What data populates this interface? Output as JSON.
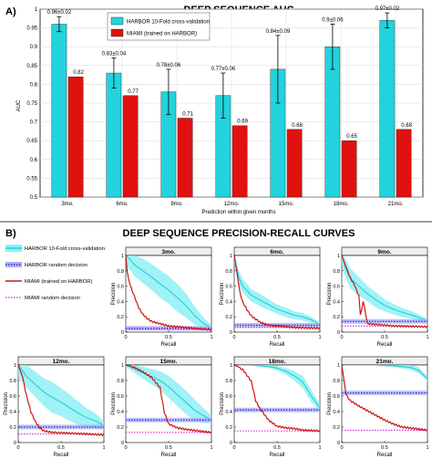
{
  "panel_a_letter": "A)",
  "panel_b_letter": "B)",
  "chart_data": [
    {
      "type": "bar",
      "title": "DEEP SEQUENCE AUC",
      "xlabel": "Prediction within given months",
      "ylabel": "AUC",
      "ylim": [
        0.5,
        1.0
      ],
      "yticks": [
        "0.5",
        "0.55",
        "0.6",
        "0.65",
        "0.7",
        "0.75",
        "0.8",
        "0.85",
        "0.9",
        "0.95",
        "1"
      ],
      "grid": true,
      "legend_position": "top-left",
      "categories": [
        "3mo.",
        "6mo.",
        "9mo.",
        "12mo.",
        "15mo.",
        "18mo.",
        "21mo."
      ],
      "series": [
        {
          "name": "HARBOR 10-Fold cross-validation",
          "color": "#22d3dd",
          "values": [
            0.96,
            0.83,
            0.78,
            0.77,
            0.84,
            0.9,
            0.97
          ],
          "errors": [
            0.02,
            0.04,
            0.06,
            0.06,
            0.09,
            0.06,
            0.02
          ],
          "labels": [
            "0.96±0.02",
            "0.83±0.04",
            "0.78±0.06",
            "0.77±0.06",
            "0.84±0.09",
            "0.9±0.06",
            "0.97±0.02"
          ]
        },
        {
          "name": "MIAMI (trained on HARBOR)",
          "color": "#e0120f",
          "values": [
            0.82,
            0.77,
            0.71,
            0.69,
            0.68,
            0.65,
            0.68
          ],
          "labels": [
            "0.82",
            "0.77",
            "0.71",
            "0.69",
            "0.68",
            "0.65",
            "0.68"
          ]
        }
      ]
    },
    {
      "type": "line",
      "title": "DEEP SEQUENCE PRECISION-RECALL CURVES",
      "xlabel": "Recall",
      "ylabel": "Precision",
      "xlim": [
        0,
        1
      ],
      "ylim": [
        0,
        1
      ],
      "xticks": [
        "0",
        "0.5",
        "1"
      ],
      "yticks": [
        "0",
        "0.2",
        "0.4",
        "0.6",
        "0.8",
        "1"
      ],
      "legend": [
        {
          "name": "HARBOR 10-Fold cross-validation",
          "color": "#22d3dd",
          "style": "band"
        },
        {
          "name": "HARBOR random decision",
          "color": "#2d2ce0",
          "style": "dotted-band"
        },
        {
          "name": "MIAMI (trained on HARBOR)",
          "color": "#cc1414",
          "style": "line"
        },
        {
          "name": "MIAMI random decision",
          "color": "#d41fd4",
          "style": "dotted"
        }
      ],
      "panels": [
        {
          "title": "3mo.",
          "harbor_random": 0.05,
          "miami_random": 0.04,
          "harbor_mean": [
            [
              0,
              1.0
            ],
            [
              0.05,
              0.95
            ],
            [
              0.1,
              0.88
            ],
            [
              0.2,
              0.8
            ],
            [
              0.3,
              0.72
            ],
            [
              0.4,
              0.63
            ],
            [
              0.5,
              0.55
            ],
            [
              0.6,
              0.45
            ],
            [
              0.7,
              0.35
            ],
            [
              0.8,
              0.22
            ],
            [
              0.9,
              0.12
            ],
            [
              1.0,
              0.06
            ]
          ],
          "harbor_band": [
            0.12,
            0.14,
            0.15,
            0.16,
            0.17,
            0.18,
            0.18,
            0.18,
            0.16,
            0.12,
            0.08,
            0.03
          ],
          "miami": [
            [
              0,
              1.0
            ],
            [
              0.02,
              0.75
            ],
            [
              0.05,
              0.62
            ],
            [
              0.1,
              0.48
            ],
            [
              0.15,
              0.33
            ],
            [
              0.2,
              0.24
            ],
            [
              0.25,
              0.19
            ],
            [
              0.3,
              0.15
            ],
            [
              0.4,
              0.12
            ],
            [
              0.5,
              0.09
            ],
            [
              0.7,
              0.07
            ],
            [
              0.9,
              0.05
            ],
            [
              1.0,
              0.04
            ]
          ]
        },
        {
          "title": "6mo.",
          "harbor_random": 0.09,
          "miami_random": 0.06,
          "harbor_mean": [
            [
              0,
              1.0
            ],
            [
              0.05,
              0.72
            ],
            [
              0.1,
              0.6
            ],
            [
              0.2,
              0.48
            ],
            [
              0.3,
              0.42
            ],
            [
              0.4,
              0.36
            ],
            [
              0.5,
              0.3
            ],
            [
              0.6,
              0.26
            ],
            [
              0.7,
              0.22
            ],
            [
              0.8,
              0.2
            ],
            [
              0.9,
              0.16
            ],
            [
              1.0,
              0.1
            ]
          ],
          "harbor_band": [
            0.1,
            0.1,
            0.09,
            0.08,
            0.08,
            0.07,
            0.06,
            0.06,
            0.05,
            0.05,
            0.04,
            0.02
          ],
          "miami": [
            [
              0,
              1.0
            ],
            [
              0.03,
              0.8
            ],
            [
              0.06,
              0.55
            ],
            [
              0.1,
              0.4
            ],
            [
              0.15,
              0.3
            ],
            [
              0.2,
              0.22
            ],
            [
              0.3,
              0.14
            ],
            [
              0.4,
              0.1
            ],
            [
              0.5,
              0.09
            ],
            [
              0.7,
              0.07
            ],
            [
              1.0,
              0.06
            ]
          ]
        },
        {
          "title": "9mo.",
          "harbor_random": 0.14,
          "miami_random": 0.08,
          "harbor_mean": [
            [
              0,
              1.0
            ],
            [
              0.05,
              0.82
            ],
            [
              0.1,
              0.7
            ],
            [
              0.2,
              0.6
            ],
            [
              0.3,
              0.5
            ],
            [
              0.4,
              0.42
            ],
            [
              0.5,
              0.35
            ],
            [
              0.6,
              0.3
            ],
            [
              0.7,
              0.26
            ],
            [
              0.8,
              0.23
            ],
            [
              0.9,
              0.19
            ],
            [
              1.0,
              0.15
            ]
          ],
          "harbor_band": [
            0.12,
            0.13,
            0.13,
            0.12,
            0.1,
            0.1,
            0.08,
            0.07,
            0.06,
            0.05,
            0.04,
            0.02
          ],
          "miami": [
            [
              0,
              1.0
            ],
            [
              0.05,
              0.85
            ],
            [
              0.1,
              0.72
            ],
            [
              0.15,
              0.62
            ],
            [
              0.2,
              0.48
            ],
            [
              0.22,
              0.2
            ],
            [
              0.25,
              0.42
            ],
            [
              0.3,
              0.12
            ],
            [
              0.4,
              0.11
            ],
            [
              0.6,
              0.09
            ],
            [
              1.0,
              0.08
            ]
          ]
        },
        {
          "title": "12mo.",
          "harbor_random": 0.2,
          "miami_random": 0.11,
          "harbor_mean": [
            [
              0,
              1.0
            ],
            [
              0.1,
              0.85
            ],
            [
              0.2,
              0.75
            ],
            [
              0.3,
              0.65
            ],
            [
              0.4,
              0.58
            ],
            [
              0.5,
              0.52
            ],
            [
              0.6,
              0.45
            ],
            [
              0.7,
              0.38
            ],
            [
              0.8,
              0.32
            ],
            [
              0.9,
              0.28
            ],
            [
              1.0,
              0.22
            ]
          ],
          "harbor_band": [
            0.15,
            0.15,
            0.16,
            0.18,
            0.2,
            0.18,
            0.17,
            0.15,
            0.12,
            0.1,
            0.05
          ],
          "miami": [
            [
              0,
              1.0
            ],
            [
              0.05,
              0.85
            ],
            [
              0.1,
              0.6
            ],
            [
              0.15,
              0.4
            ],
            [
              0.2,
              0.28
            ],
            [
              0.25,
              0.2
            ],
            [
              0.3,
              0.16
            ],
            [
              0.4,
              0.14
            ],
            [
              0.6,
              0.13
            ],
            [
              0.8,
              0.12
            ],
            [
              1.0,
              0.11
            ]
          ]
        },
        {
          "title": "15mo.",
          "harbor_random": 0.29,
          "miami_random": 0.13,
          "harbor_mean": [
            [
              0,
              1.0
            ],
            [
              0.1,
              0.95
            ],
            [
              0.2,
              0.9
            ],
            [
              0.3,
              0.85
            ],
            [
              0.4,
              0.8
            ],
            [
              0.5,
              0.72
            ],
            [
              0.6,
              0.62
            ],
            [
              0.7,
              0.52
            ],
            [
              0.8,
              0.42
            ],
            [
              0.9,
              0.35
            ],
            [
              1.0,
              0.3
            ]
          ],
          "harbor_band": [
            0.02,
            0.05,
            0.08,
            0.1,
            0.12,
            0.14,
            0.15,
            0.15,
            0.14,
            0.1,
            0.05
          ],
          "miami": [
            [
              0,
              1.0
            ],
            [
              0.1,
              0.98
            ],
            [
              0.2,
              0.92
            ],
            [
              0.3,
              0.85
            ],
            [
              0.4,
              0.72
            ],
            [
              0.45,
              0.4
            ],
            [
              0.5,
              0.25
            ],
            [
              0.6,
              0.2
            ],
            [
              0.7,
              0.18
            ],
            [
              0.85,
              0.16
            ],
            [
              1.0,
              0.14
            ]
          ]
        },
        {
          "title": "18mo.",
          "harbor_random": 0.42,
          "miami_random": 0.15,
          "harbor_mean": [
            [
              0,
              1.0
            ],
            [
              0.2,
              1.0
            ],
            [
              0.4,
              0.98
            ],
            [
              0.5,
              0.96
            ],
            [
              0.6,
              0.92
            ],
            [
              0.7,
              0.86
            ],
            [
              0.8,
              0.78
            ],
            [
              0.9,
              0.6
            ],
            [
              1.0,
              0.45
            ]
          ],
          "harbor_band": [
            0.01,
            0.01,
            0.02,
            0.03,
            0.04,
            0.06,
            0.08,
            0.08,
            0.04
          ],
          "miami": [
            [
              0,
              1.0
            ],
            [
              0.1,
              0.95
            ],
            [
              0.2,
              0.8
            ],
            [
              0.25,
              0.55
            ],
            [
              0.3,
              0.45
            ],
            [
              0.4,
              0.3
            ],
            [
              0.5,
              0.22
            ],
            [
              0.6,
              0.2
            ],
            [
              0.7,
              0.19
            ],
            [
              0.8,
              0.17
            ],
            [
              1.0,
              0.16
            ]
          ]
        },
        {
          "title": "21mo.",
          "harbor_random": 0.64,
          "miami_random": 0.16,
          "harbor_mean": [
            [
              0,
              1.0
            ],
            [
              0.2,
              1.0
            ],
            [
              0.4,
              1.0
            ],
            [
              0.6,
              0.99
            ],
            [
              0.8,
              0.97
            ],
            [
              0.9,
              0.93
            ],
            [
              1.0,
              0.82
            ]
          ],
          "harbor_band": [
            0.0,
            0.0,
            0.01,
            0.02,
            0.03,
            0.04,
            0.03
          ],
          "miami": [
            [
              0,
              1.0
            ],
            [
              0.05,
              0.62
            ],
            [
              0.1,
              0.55
            ],
            [
              0.2,
              0.48
            ],
            [
              0.3,
              0.42
            ],
            [
              0.4,
              0.36
            ],
            [
              0.5,
              0.3
            ],
            [
              0.6,
              0.25
            ],
            [
              0.7,
              0.21
            ],
            [
              0.85,
              0.19
            ],
            [
              1.0,
              0.17
            ]
          ]
        }
      ]
    }
  ]
}
